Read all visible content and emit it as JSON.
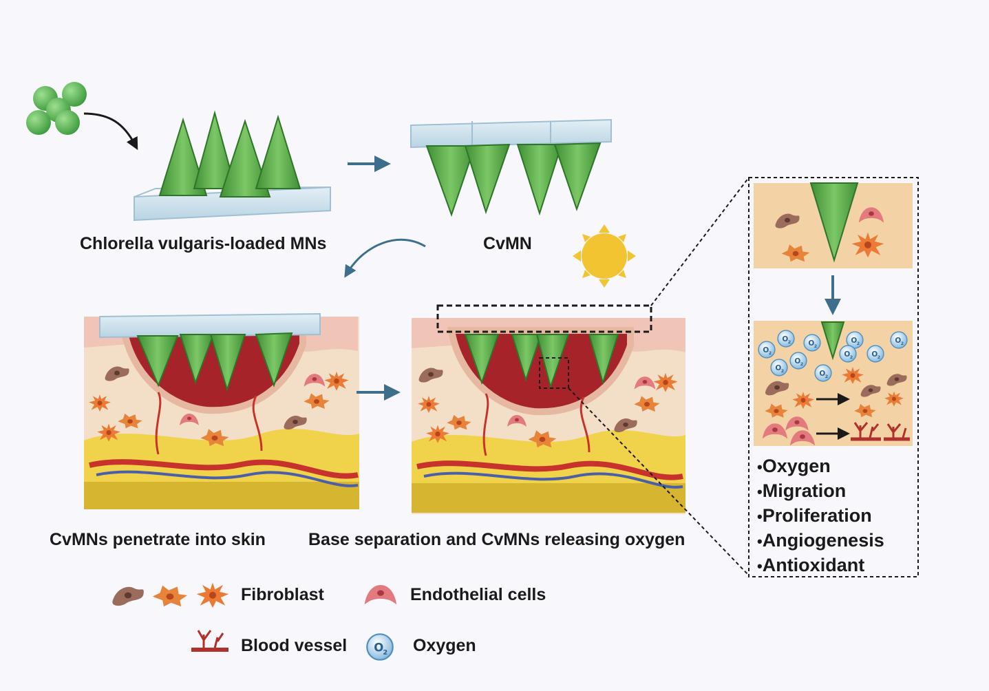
{
  "labels": {
    "mn_loaded": "Chlorella vulgaris-loaded MNs",
    "cvmn": "CvMN",
    "penetrate": "CvMNs penetrate into skin",
    "release": "Base separation and CvMNs releasing oxygen"
  },
  "effects": [
    "Oxygen",
    "Migration",
    "Proliferation",
    "Angiogenesis",
    "Antioxidant"
  ],
  "legend": {
    "fibroblast": "Fibroblast",
    "endothelial": "Endothelial cells",
    "blood_vessel": "Blood vessel",
    "oxygen": "Oxygen"
  },
  "oxygen_symbol": "O2",
  "colors": {
    "needle": "#5aa845",
    "base": "#cfe3ee",
    "arrow": "#3d6f8c",
    "wound": "#a6232a",
    "skin": "#f3d2a6",
    "fat": "#f0d34a",
    "sun": "#f2c432",
    "algae": "#5ab85a"
  },
  "icons": [
    "algae-cells-icon",
    "sun-icon",
    "fibroblast-icon",
    "endothelial-cell-icon",
    "blood-vessel-icon",
    "oxygen-icon"
  ]
}
